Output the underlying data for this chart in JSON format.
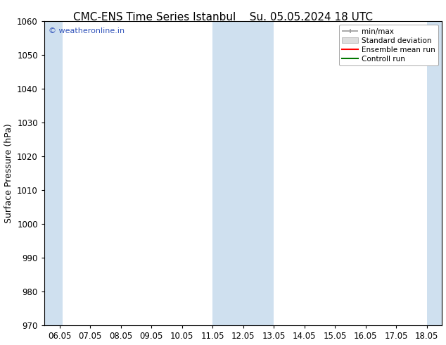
{
  "title_left": "CMC-ENS Time Series Istanbul",
  "title_right": "Su. 05.05.2024 18 UTC",
  "ylabel": "Surface Pressure (hPa)",
  "ylim": [
    970,
    1060
  ],
  "yticks": [
    970,
    980,
    990,
    1000,
    1010,
    1020,
    1030,
    1040,
    1050,
    1060
  ],
  "xtick_labels": [
    "06.05",
    "07.05",
    "08.05",
    "09.05",
    "10.05",
    "11.05",
    "12.05",
    "13.05",
    "14.05",
    "15.05",
    "16.05",
    "17.05",
    "18.05"
  ],
  "xtick_positions": [
    0,
    1,
    2,
    3,
    4,
    5,
    6,
    7,
    8,
    9,
    10,
    11,
    12
  ],
  "xlim": [
    -0.5,
    12.5
  ],
  "shaded_bands": [
    {
      "x_start": -0.5,
      "x_end": 0.1
    },
    {
      "x_start": 5.0,
      "x_end": 7.0
    },
    {
      "x_start": 12.0,
      "x_end": 12.5
    }
  ],
  "shade_color": "#cfe0ef",
  "background_color": "#ffffff",
  "watermark_text": "© weatheronline.in",
  "watermark_color": "#3355bb",
  "legend_entries": [
    "min/max",
    "Standard deviation",
    "Ensemble mean run",
    "Controll run"
  ],
  "legend_line_colors": [
    "#999999",
    "#cccccc",
    "#ff0000",
    "#007700"
  ],
  "title_fontsize": 11,
  "axis_label_fontsize": 9,
  "tick_fontsize": 8.5,
  "legend_fontsize": 7.5
}
